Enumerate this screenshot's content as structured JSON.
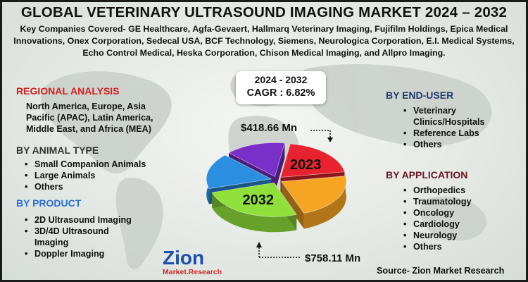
{
  "title": "GLOBAL VETERINARY ULTRASOUND IMAGING MARKET 2024 – 2032",
  "companies": "Key Companies Covered- GE Healthcare, Agfa-Gevaert, Hallmarq Veterinary Imaging, Fujifilm Holdings, Epica Medical Innovations, Onex Corporation, Sedecal USA, BCF Technology, Siemens, Neurologica Corporation, E.I. Medical Systems, Echo Control Medical, Heska Corporation, Chison Medical Imaging, and Allpro Imaging.",
  "regional": {
    "heading": "REGIONAL ANALYSIS",
    "text": "North America, Europe, Asia Pacific (APAC), Latin America, Middle East, and Africa (MEA)"
  },
  "animal_type": {
    "heading": "BY ANIMAL TYPE",
    "items": [
      "Small Companion Animals",
      "Large Animals",
      "Others"
    ]
  },
  "product": {
    "heading": "BY PRODUCT",
    "items": [
      "2D Ultrasound Imaging",
      "3D/4D Ultrasound Imaging",
      "Doppler Imaging"
    ]
  },
  "end_user": {
    "heading": "BY END-USER",
    "items": [
      "Veterinary Clinics/Hospitals",
      "Reference Labs",
      "Others"
    ]
  },
  "application": {
    "heading": "BY APPLICATION",
    "items": [
      "Orthopedics",
      "Traumatology",
      "Oncology",
      "Cardiology",
      "Neurology",
      "Others"
    ]
  },
  "cagr": {
    "period": "2024 - 2032",
    "label": "CAGR :",
    "value": "6.82%"
  },
  "source": "Source- Zion Market Research",
  "logo": {
    "name": "Zion",
    "tagline": "Market.Research"
  },
  "colors": {
    "red": "#e8232f",
    "orange": "#f5a423",
    "green": "#8fe03a",
    "blue": "#2a8fe0",
    "purple": "#7a2fc8"
  },
  "chart_data": {
    "type": "pie",
    "style": "3d-exploded",
    "slices": [
      {
        "value": 20,
        "color": "#e8232f",
        "label": "2023"
      },
      {
        "value": 22,
        "color": "#f5a423",
        "label": ""
      },
      {
        "value": 26,
        "color": "#8fe03a",
        "label": "2032"
      },
      {
        "value": 17,
        "color": "#2a8fe0",
        "label": ""
      },
      {
        "value": 15,
        "color": "#7a2fc8",
        "label": ""
      }
    ],
    "annotations": [
      {
        "text": "$418.66 Mn",
        "target": "2023"
      },
      {
        "text": "$758.11 Mn",
        "target": "2032"
      }
    ]
  }
}
